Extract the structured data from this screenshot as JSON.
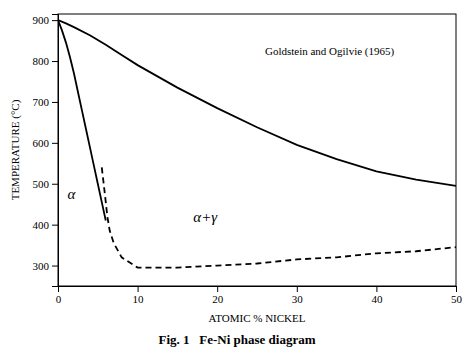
{
  "chart_data": {
    "type": "line",
    "xlabel": "ATOMIC % NICKEL",
    "ylabel": "TEMPERATURE (°C)",
    "caption": "Fig. 1   Fe-Ni phase diagram",
    "xlim": [
      0,
      50
    ],
    "ylim": [
      250,
      915
    ],
    "xticks": [
      0,
      10,
      20,
      30,
      40,
      50
    ],
    "yticks": [
      300,
      400,
      500,
      600,
      700,
      800,
      900
    ],
    "series": [
      {
        "color": "#000000",
        "line_style": "solid",
        "x": [
          0,
          0.5,
          1.0,
          1.5,
          2.0,
          2.5,
          3.0,
          3.5,
          4.0,
          4.5,
          5.0,
          5.5,
          6.0
        ],
        "values": [
          900,
          875,
          845,
          810,
          770,
          725,
          680,
          635,
          590,
          545,
          500,
          455,
          410
        ]
      },
      {
        "color": "#000000",
        "line_style": "solid",
        "x": [
          0,
          1,
          2,
          4,
          6,
          8,
          10,
          15,
          20,
          25,
          30,
          35,
          40,
          45,
          50
        ],
        "values": [
          900,
          892,
          883,
          863,
          840,
          815,
          790,
          735,
          685,
          638,
          595,
          560,
          530,
          510,
          495
        ]
      },
      {
        "color": "#000000",
        "line_style": "dashed",
        "x": [
          5.5,
          5.8,
          6.0,
          6.2,
          6.5,
          7.0,
          8.0,
          10,
          15,
          20,
          25,
          30,
          35,
          40,
          45,
          50
        ],
        "values": [
          540,
          490,
          455,
          420,
          385,
          355,
          320,
          295,
          295,
          300,
          305,
          315,
          320,
          330,
          335,
          345
        ]
      }
    ],
    "annotations": [
      {
        "text": "α",
        "x": 1.2,
        "y": 470
      },
      {
        "text": "α+γ",
        "x": 17,
        "y": 415
      },
      {
        "text": "Goldstein and Ogilvie (1965)",
        "x": 26,
        "y": 820
      }
    ]
  }
}
